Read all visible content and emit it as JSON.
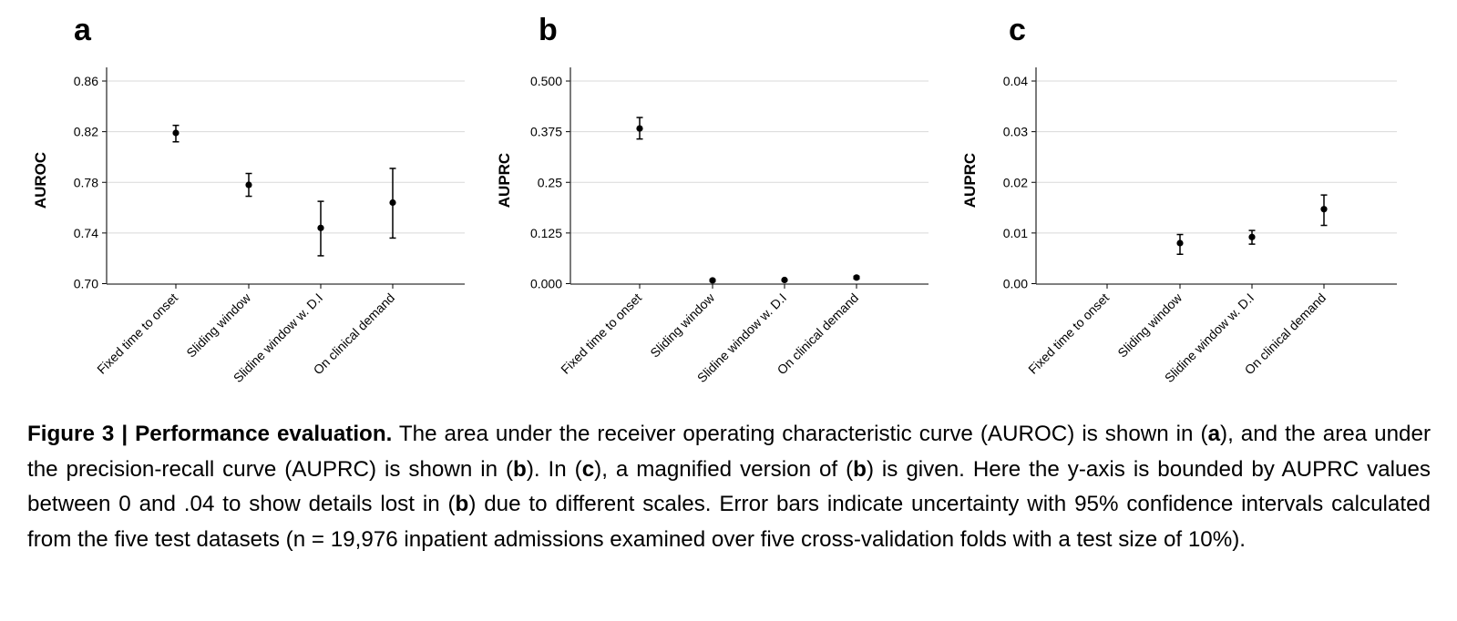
{
  "chart_data": [
    {
      "type": "scatter",
      "panel_letter": "a",
      "ylabel": "AUROC",
      "categories": [
        "Fixed time to onset",
        "Sliding window",
        "Slidine window w. D.I",
        "On clinical demand"
      ],
      "ylim": [
        0.7,
        0.86
      ],
      "yticks": [
        "0.70",
        "0.74",
        "0.78",
        "0.82",
        "0.86"
      ],
      "grid": "horizontal",
      "values": [
        0.819,
        0.778,
        0.744,
        0.764
      ],
      "err_low": [
        0.812,
        0.769,
        0.722,
        0.736
      ],
      "err_high": [
        0.825,
        0.787,
        0.765,
        0.791
      ]
    },
    {
      "type": "scatter",
      "panel_letter": "b",
      "ylabel": "AUPRC",
      "categories": [
        "Fixed time to onset",
        "Sliding window",
        "Slidine window w. D.I",
        "On clinical demand"
      ],
      "ylim": [
        0.0,
        0.5
      ],
      "yticks": [
        "0.000",
        "0.125",
        "0.25",
        "0.375",
        "0.500"
      ],
      "grid": "horizontal",
      "values": [
        0.383,
        0.008,
        0.009,
        0.015
      ],
      "err_low": [
        0.357,
        0.006,
        0.008,
        0.012
      ],
      "err_high": [
        0.41,
        0.01,
        0.01,
        0.018
      ]
    },
    {
      "type": "scatter",
      "panel_letter": "c",
      "ylabel": "AUPRC",
      "categories": [
        "Fixed time to onset",
        "Sliding window",
        "Slidine window w. D.I",
        "On clinical demand"
      ],
      "ylim": [
        0.0,
        0.04
      ],
      "yticks": [
        "0.00",
        "0.01",
        "0.02",
        "0.03",
        "0.04"
      ],
      "grid": "horizontal",
      "values": [
        null,
        0.008,
        0.0092,
        0.0147
      ],
      "err_low": [
        null,
        0.0058,
        0.0078,
        0.0115
      ],
      "err_high": [
        null,
        0.0097,
        0.0105,
        0.0175
      ]
    }
  ],
  "caption": {
    "figure_label": "Figure 3 | Performance evaluation.",
    "part1": " The area under the receiver operating characteristic curve (AUROC) is shown in (",
    "ref_a": "a",
    "part2": "), and the area under the precision-recall curve (AUPRC) is shown in (",
    "ref_b1": "b",
    "part3": "). In (",
    "ref_c": "c",
    "part4": "), a magnified version of (",
    "ref_b2": "b",
    "part5": ") is given. Here the y-axis is bounded by AUPRC values between 0 and .04 to show details lost in (",
    "ref_b3": "b",
    "part6": ") due to different scales. Error bars indicate uncertainty with 95% confidence intervals calculated from the five test datasets (n = 19,976 inpatient admissions examined over five cross-validation folds with a test size of 10%)."
  }
}
